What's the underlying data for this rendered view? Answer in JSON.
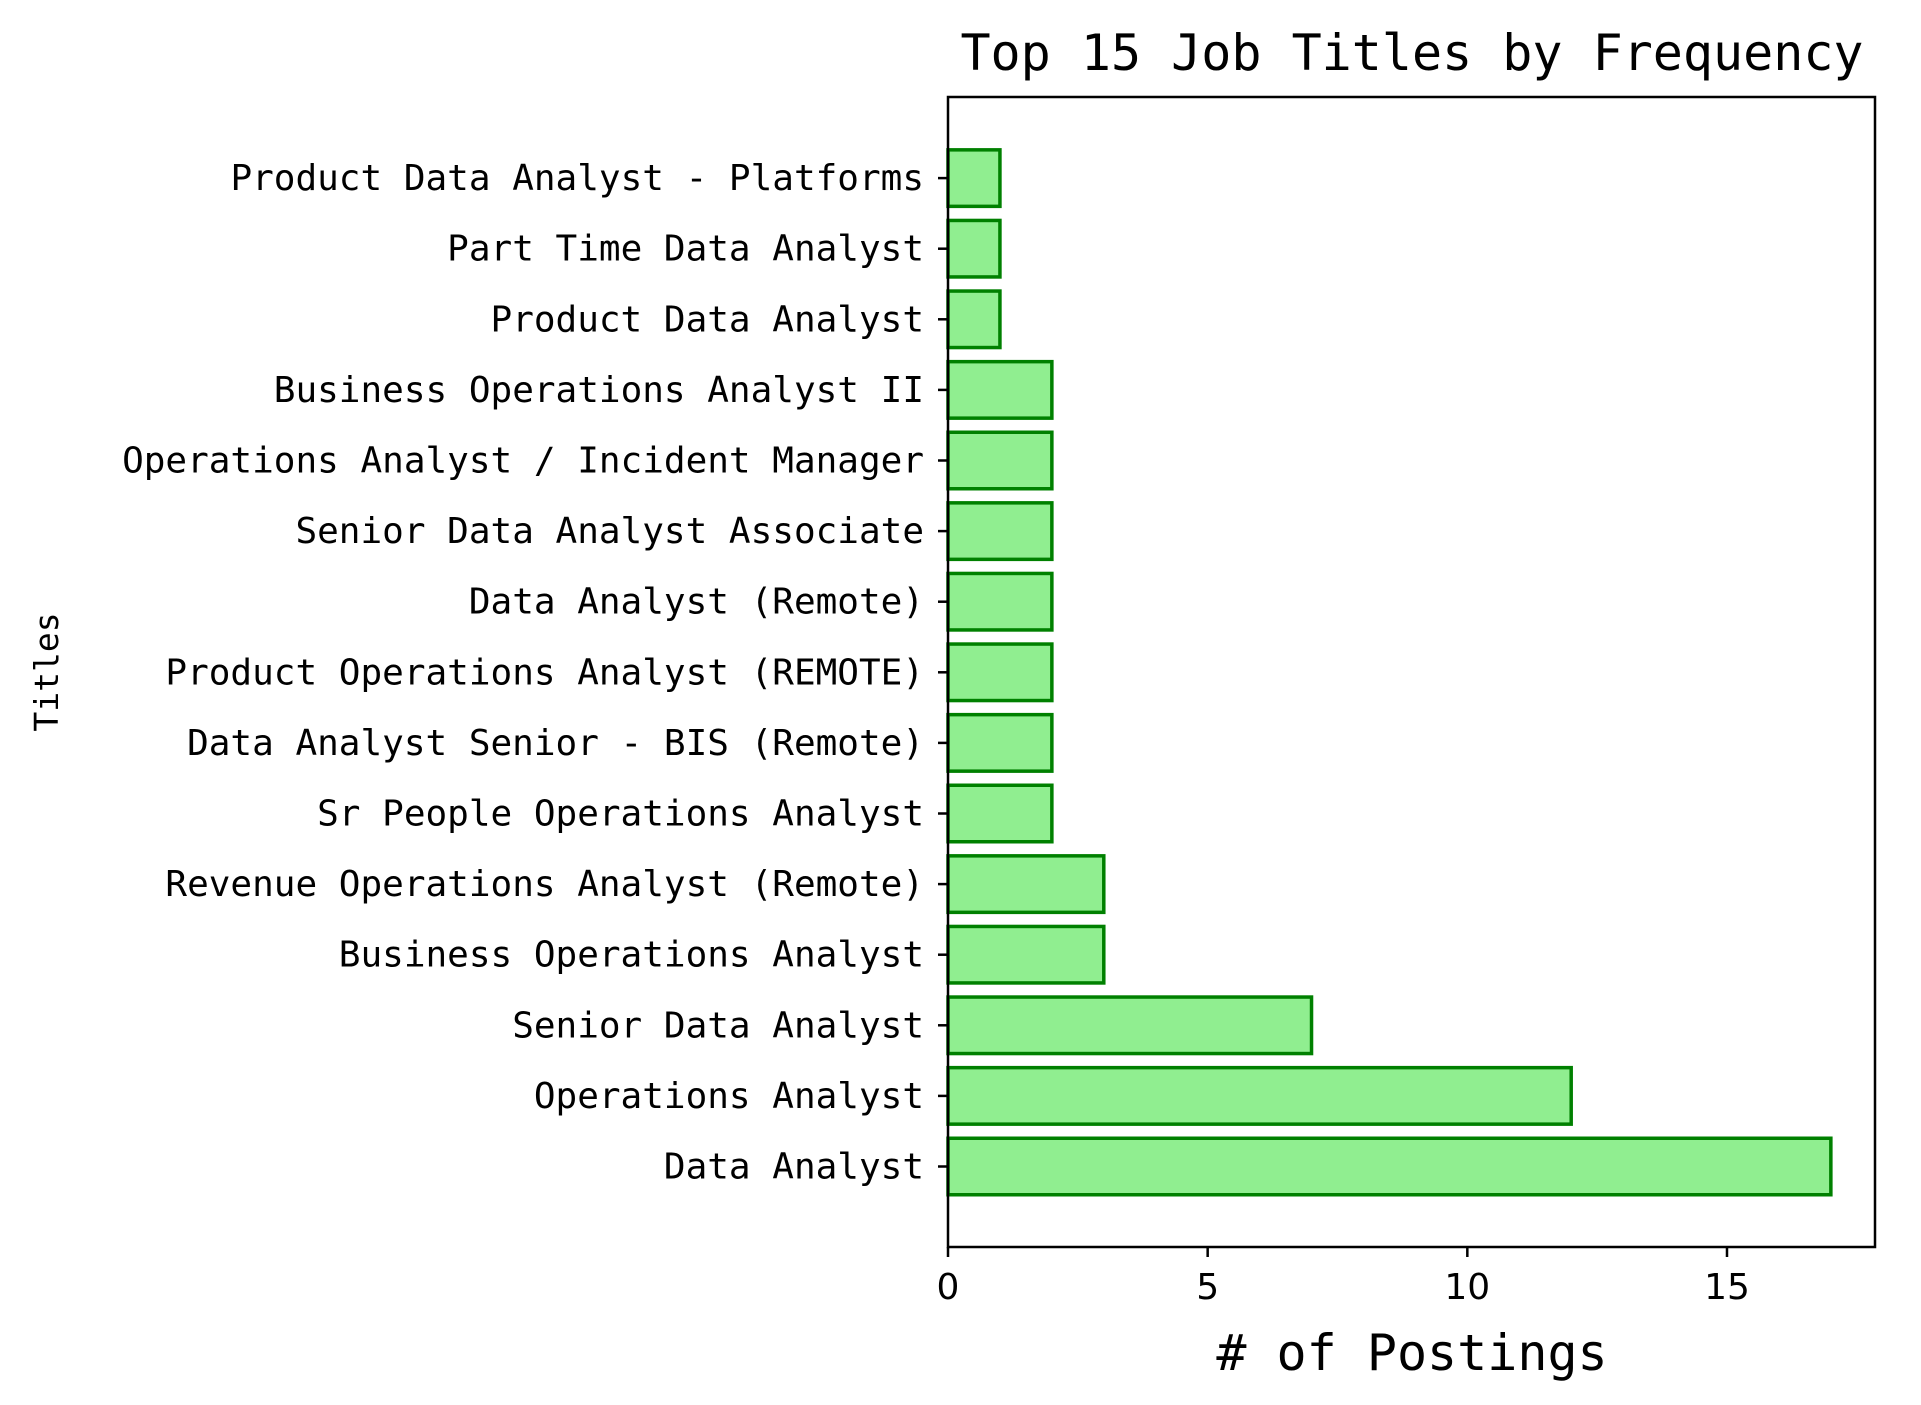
{
  "chart_data": {
    "type": "bar",
    "orientation": "horizontal",
    "title": "Top 15 Job Titles by Frequency",
    "xlabel": "# of Postings",
    "ylabel": "Titles",
    "categories": [
      "Data Analyst",
      "Operations Analyst",
      "Senior Data Analyst",
      "Business Operations Analyst",
      "Revenue Operations Analyst (Remote)",
      "Sr People Operations Analyst",
      "Data Analyst Senior - BIS (Remote)",
      "Product Operations Analyst (REMOTE)",
      "Data Analyst (Remote)",
      "Senior Data Analyst Associate",
      "Operations Analyst / Incident Manager",
      "Business Operations Analyst II",
      "Product Data Analyst",
      "Part Time Data Analyst",
      "Product Data Analyst - Platforms"
    ],
    "values": [
      17,
      12,
      7,
      3,
      3,
      2,
      2,
      2,
      2,
      2,
      2,
      2,
      1,
      1,
      1
    ],
    "xlim": [
      0,
      17.85
    ],
    "xticks": [
      0,
      5,
      10,
      15
    ],
    "xtick_labels": [
      "0",
      "5",
      "10",
      "15"
    ],
    "grid": false,
    "legend": "none",
    "colors": {
      "bar_fill": "#90ee90",
      "bar_edge": "#008000"
    }
  }
}
